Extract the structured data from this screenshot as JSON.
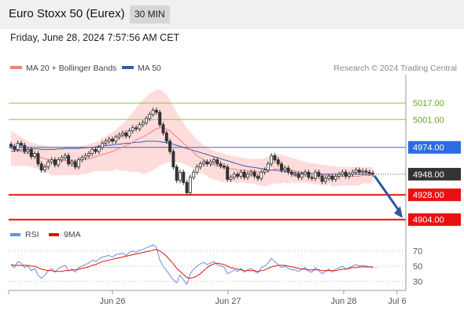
{
  "header": {
    "title": "Euro Stoxx 50 (Eurex)",
    "timeframe": "30 MIN",
    "timestamp": "Friday, June 28, 2024 7:57:56 AM CET"
  },
  "legend": {
    "ma20_label": "MA 20 + Bollinger Bands",
    "ma50_label": "MA 50",
    "copyright": "Research © 2024 Trading Central",
    "rsi_label": "RSI",
    "rsi_ma_label": "9MA"
  },
  "colors": {
    "ma20": "#f08080",
    "ma50": "#3b5ba5",
    "bollinger_fill": "#ffd6d6",
    "resistance_green": "#8cc63f",
    "pivot_blue": "#2d6be0",
    "support_red": "#e81010",
    "last_price": "#333333",
    "rsi": "#6a8fe0",
    "rsi_ma": "#e01010",
    "arrow": "#2a5aa0"
  },
  "chart_data": [
    {
      "type": "candlestick",
      "x_tick_labels": [
        "Jun 26",
        "Jun 27",
        "Jun 28",
        "Jul 6"
      ],
      "ylim": [
        4900,
        5040
      ],
      "levels": [
        {
          "value": 5017.0,
          "label": "5017.00",
          "kind": "resistance"
        },
        {
          "value": 5001.0,
          "label": "5001.00",
          "kind": "resistance"
        },
        {
          "value": 4974.0,
          "label": "4974.00",
          "kind": "pivot"
        },
        {
          "value": 4948.0,
          "label": "4948.00",
          "kind": "last"
        },
        {
          "value": 4928.0,
          "label": "4928.00",
          "kind": "support"
        },
        {
          "value": 4904.0,
          "label": "4904.00",
          "kind": "support"
        }
      ],
      "close": [
        4975,
        4972,
        4978,
        4976,
        4970,
        4972,
        4965,
        4968,
        4958,
        4952,
        4955,
        4960,
        4962,
        4957,
        4962,
        4964,
        4966,
        4958,
        4960,
        4955,
        4962,
        4964,
        4966,
        4968,
        4972,
        4970,
        4974,
        4978,
        4980,
        4982,
        4980,
        4984,
        4986,
        4988,
        4985,
        4990,
        4993,
        4992,
        4996,
        4998,
        5002,
        5006,
        5010,
        5008,
        4996,
        4988,
        4980,
        4970,
        4955,
        4942,
        4950,
        4940,
        4930,
        4945,
        4950,
        4955,
        4958,
        4960,
        4958,
        4960,
        4962,
        4958,
        4956,
        4955,
        4943,
        4945,
        4948,
        4946,
        4950,
        4945,
        4948,
        4950,
        4946,
        4944,
        4950,
        4952,
        4958,
        4966,
        4962,
        4958,
        4952,
        4954,
        4950,
        4948,
        4948,
        4945,
        4948,
        4950,
        4945,
        4944,
        4950,
        4946,
        4941,
        4944,
        4946,
        4943,
        4946,
        4948,
        4950,
        4946,
        4948,
        4950,
        4952,
        4950,
        4951,
        4950,
        4949,
        4948
      ],
      "ma50": [
        4970,
        4970.5,
        4971,
        4971.5,
        4972,
        4972,
        4972.5,
        4972.5,
        4972.5,
        4972,
        4972,
        4972,
        4972,
        4972,
        4972.5,
        4972.5,
        4973,
        4973,
        4973,
        4973,
        4973,
        4973.5,
        4973.5,
        4974,
        4974,
        4974.5,
        4975,
        4975.5,
        4976,
        4976,
        4976.5,
        4977,
        4977,
        4977.5,
        4978,
        4978,
        4978.5,
        4979,
        4979,
        4979.5,
        4980,
        4980,
        4980,
        4980,
        4979.5,
        4979,
        4978.5,
        4978,
        4977,
        4976,
        4975,
        4974,
        4973,
        4972,
        4971,
        4970,
        4969,
        4968,
        4967,
        4966,
        4965,
        4964,
        4963,
        4962,
        4961,
        4960,
        4959,
        4958,
        4957,
        4956,
        4955.5,
        4955,
        4954.5,
        4954,
        4953.5,
        4953,
        4952.5,
        4952,
        4952,
        4951.5,
        4951,
        4950.5,
        4950,
        4950,
        4949.5,
        4949,
        4949,
        4949,
        4948.5,
        4948.5,
        4948,
        4948,
        4948,
        4948,
        4948,
        4948,
        4948,
        4948,
        4948,
        4948,
        4948,
        4948,
        4948,
        4948,
        4948,
        4948,
        4948,
        4948
      ],
      "ma20": [
        4973,
        4972,
        4971,
        4970,
        4969,
        4968,
        4967,
        4966,
        4965,
        4964,
        4963,
        4962,
        4961,
        4961,
        4961,
        4961,
        4961,
        4961,
        4961,
        4961,
        4961,
        4962,
        4962,
        4963,
        4964,
        4965,
        4966,
        4967,
        4968,
        4969,
        4970,
        4972,
        4973,
        4974,
        4976,
        4977,
        4979,
        4981,
        4983,
        4984,
        4986,
        4988,
        4990,
        4992,
        4993,
        4993,
        4992,
        4990,
        4987,
        4984,
        4981,
        4978,
        4975,
        4972,
        4969,
        4966,
        4964,
        4962,
        4960,
        4958,
        4957,
        4956,
        4955,
        4954,
        4954,
        4953,
        4953,
        4952,
        4952,
        4952,
        4951,
        4951,
        4951,
        4950,
        4950,
        4950,
        4951,
        4952,
        4953,
        4953,
        4953,
        4953,
        4952,
        4952,
        4951,
        4951,
        4950,
        4950,
        4949,
        4949,
        4948,
        4948,
        4947,
        4947,
        4947,
        4946,
        4946,
        4946,
        4946,
        4946,
        4946,
        4946,
        4946,
        4946,
        4947,
        4947,
        4947,
        4947
      ],
      "bb_upper": [
        4990,
        4988,
        4986,
        4984,
        4982,
        4980,
        4979,
        4978,
        4977,
        4976,
        4976,
        4975,
        4975,
        4975,
        4975,
        4975,
        4975,
        4975,
        4975,
        4975,
        4975,
        4976,
        4976,
        4977,
        4978,
        4979,
        4981,
        4983,
        4985,
        4987,
        4989,
        4991,
        4994,
        4997,
        5000,
        5004,
        5008,
        5012,
        5016,
        5020,
        5023,
        5026,
        5028,
        5030,
        5030,
        5028,
        5025,
        5020,
        5014,
        5008,
        5003,
        4998,
        4993,
        4989,
        4985,
        4982,
        4979,
        4976,
        4974,
        4972,
        4971,
        4970,
        4969,
        4968,
        4967,
        4966,
        4966,
        4965,
        4964,
        4964,
        4963,
        4963,
        4963,
        4963,
        4963,
        4964,
        4965,
        4966,
        4967,
        4967,
        4967,
        4966,
        4965,
        4964,
        4963,
        4962,
        4961,
        4960,
        4959,
        4959,
        4958,
        4958,
        4957,
        4957,
        4956,
        4956,
        4956,
        4955,
        4955,
        4955,
        4955,
        4955,
        4955,
        4955,
        4955,
        4955,
        4955,
        4955
      ],
      "bb_lower": [
        4956,
        4956,
        4956,
        4956,
        4956,
        4956,
        4955,
        4954,
        4953,
        4952,
        4950,
        4949,
        4947,
        4947,
        4947,
        4947,
        4947,
        4947,
        4947,
        4947,
        4947,
        4948,
        4948,
        4949,
        4950,
        4951,
        4951,
        4951,
        4951,
        4951,
        4951,
        4953,
        4952,
        4951,
        4952,
        4950,
        4950,
        4950,
        4950,
        4948,
        4949,
        4950,
        4952,
        4954,
        4956,
        4958,
        4959,
        4960,
        4960,
        4960,
        4959,
        4958,
        4957,
        4955,
        4953,
        4950,
        4949,
        4948,
        4946,
        4944,
        4943,
        4942,
        4941,
        4940,
        4941,
        4940,
        4940,
        4939,
        4940,
        4940,
        4939,
        4939,
        4939,
        4937,
        4937,
        4936,
        4937,
        4938,
        4939,
        4939,
        4939,
        4940,
        4939,
        4940,
        4939,
        4940,
        4939,
        4940,
        4939,
        4939,
        4938,
        4938,
        4937,
        4937,
        4938,
        4936,
        4936,
        4937,
        4937,
        4937,
        4937,
        4937,
        4937,
        4937,
        4939,
        4939,
        4939,
        4939
      ]
    },
    {
      "type": "line",
      "name": "RSI",
      "x_tick_labels": [
        "Jun 26",
        "Jun 27",
        "Jun 28",
        "Jul 6"
      ],
      "ylim": [
        20,
        80
      ],
      "y_tick_labels": [
        "70",
        "50",
        "30"
      ],
      "y_ticks": [
        70,
        50,
        30
      ],
      "series": [
        {
          "name": "RSI",
          "values": [
            52,
            48,
            56,
            54,
            48,
            50,
            44,
            47,
            38,
            34,
            38,
            44,
            47,
            42,
            47,
            49,
            51,
            44,
            46,
            42,
            48,
            50,
            52,
            54,
            58,
            56,
            59,
            62,
            63,
            64,
            62,
            65,
            66,
            67,
            64,
            68,
            70,
            68,
            71,
            72,
            74,
            76,
            78,
            75,
            58,
            50,
            44,
            38,
            32,
            28,
            38,
            32,
            26,
            40,
            46,
            50,
            53,
            55,
            52,
            54,
            56,
            52,
            50,
            49,
            40,
            42,
            45,
            43,
            47,
            42,
            45,
            47,
            43,
            41,
            48,
            50,
            54,
            60,
            56,
            52,
            48,
            50,
            47,
            45,
            45,
            43,
            46,
            48,
            43,
            42,
            48,
            44,
            40,
            43,
            46,
            42,
            46,
            48,
            50,
            46,
            48,
            50,
            52,
            50,
            51,
            50,
            49,
            48
          ]
        },
        {
          "name": "9MA",
          "values": [
            52,
            51,
            51,
            51,
            51,
            51,
            50,
            50,
            48,
            46,
            45,
            44,
            44,
            43,
            43,
            43,
            44,
            44,
            45,
            45,
            46,
            47,
            48,
            49,
            51,
            52,
            54,
            56,
            57,
            58,
            59,
            60,
            61,
            62,
            63,
            64,
            65,
            66,
            67,
            68,
            69,
            70,
            71,
            72,
            70,
            67,
            63,
            58,
            53,
            47,
            43,
            39,
            35,
            34,
            35,
            37,
            40,
            44,
            48,
            51,
            53,
            54,
            53,
            52,
            50,
            48,
            47,
            46,
            45,
            44,
            44,
            44,
            44,
            43,
            44,
            45,
            47,
            49,
            50,
            51,
            51,
            51,
            50,
            49,
            48,
            47,
            46,
            46,
            45,
            45,
            45,
            45,
            44,
            44,
            44,
            44,
            44,
            45,
            46,
            46,
            47,
            48,
            48,
            49,
            49,
            49,
            49,
            49
          ]
        }
      ]
    }
  ]
}
